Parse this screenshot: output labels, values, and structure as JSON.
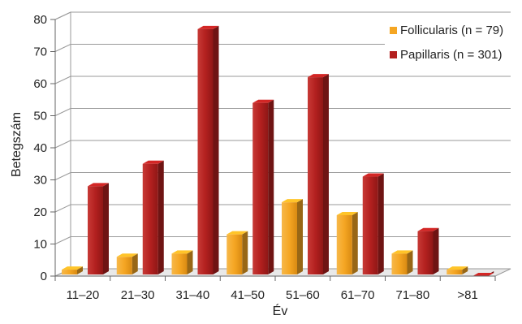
{
  "chart_data": {
    "type": "bar",
    "style": "3d-clustered-column",
    "xlabel": "Év",
    "ylabel": "Betegszám",
    "ylim": [
      0,
      80
    ],
    "ytick_step": 10,
    "ytick_labels": [
      "0",
      "10",
      "20",
      "30",
      "40",
      "50",
      "60",
      "70",
      "80"
    ],
    "grid": true,
    "legend_position": "top-right",
    "categories": [
      "11–20",
      "21–30",
      "31–40",
      "41–50",
      "51–60",
      "61–70",
      "71–80",
      ">81"
    ],
    "series": [
      {
        "name": "Follicularis (n = 79)",
        "color": "#f5a623",
        "values": [
          2,
          6,
          7,
          13,
          23,
          19,
          7,
          2
        ]
      },
      {
        "name": "Papillaris (n = 301)",
        "color": "#b3201f",
        "values": [
          28,
          35,
          77,
          54,
          62,
          31,
          14,
          0
        ]
      }
    ]
  }
}
